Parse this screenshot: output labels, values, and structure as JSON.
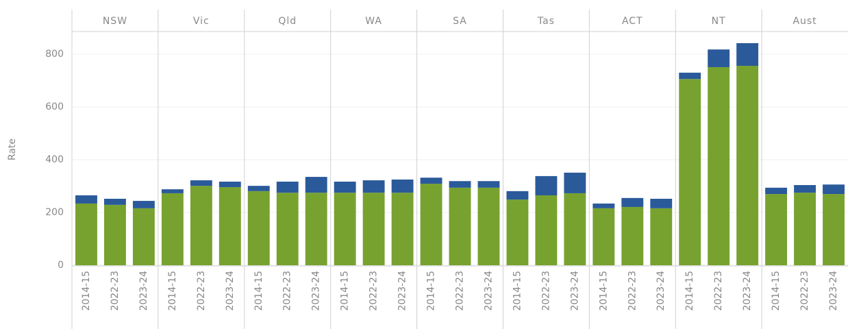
{
  "chart_data": {
    "type": "stacked_bar",
    "y_label": "Rate",
    "categories": [
      "NSW",
      "Vic",
      "Qld",
      "WA",
      "SA",
      "Tas",
      "ACT",
      "NT",
      "Aust"
    ],
    "x": [
      "2014-15",
      "2022-23",
      "2023-24"
    ],
    "series": [
      {
        "color": "#77a22f",
        "values": [
          [
            234,
            229,
            216
          ],
          [
            273,
            301,
            296
          ],
          [
            281,
            275,
            275
          ],
          [
            275,
            275,
            275
          ],
          [
            309,
            294,
            294
          ],
          [
            249,
            265,
            273
          ],
          [
            216,
            221,
            216
          ],
          [
            706,
            751,
            756
          ],
          [
            270,
            275,
            270
          ]
        ]
      },
      {
        "color": "#2a5a9a",
        "values": [
          [
            31,
            23,
            28
          ],
          [
            15,
            21,
            21
          ],
          [
            20,
            42,
            60
          ],
          [
            42,
            47,
            50
          ],
          [
            23,
            25,
            25
          ],
          [
            32,
            73,
            78
          ],
          [
            18,
            34,
            36
          ],
          [
            24,
            67,
            86
          ],
          [
            24,
            29,
            36
          ]
        ]
      }
    ],
    "ylim": [
      0,
      886
    ],
    "yticks": [
      0,
      200,
      400,
      600,
      800
    ],
    "grid": true
  }
}
